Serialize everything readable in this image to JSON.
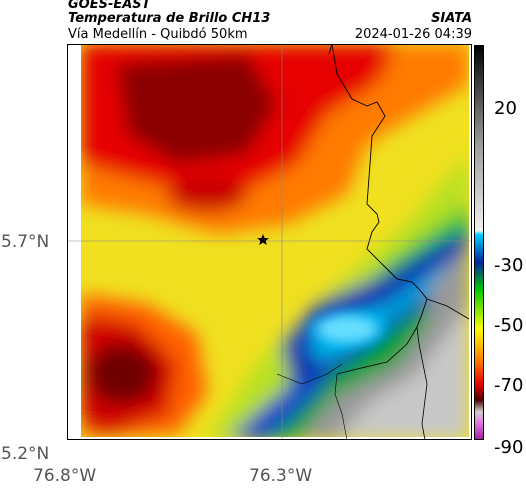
{
  "header": {
    "satellite": "GOES-EAST",
    "product": "Temperatura de Brillo CH13",
    "source": "SIATA",
    "route": "Vía Medellín - Quibdó 50km",
    "datetime": "2024-01-26 04:39"
  },
  "map": {
    "marker": "star-marker",
    "lat_labels": [
      "5.7°N",
      "5.2°N"
    ],
    "lon_labels": [
      "76.8°W",
      "76.3°W"
    ]
  },
  "colorbar": {
    "ticks": [
      "20",
      "-30",
      "-50",
      "-70",
      "-90"
    ],
    "palette": [
      "#000000",
      "#555555",
      "#9b9b9b",
      "#e8e8e8",
      "#00b6e6",
      "#0026a0",
      "#00c800",
      "#ffff00",
      "#ff8c00",
      "#e60000",
      "#6e0000",
      "#b43cb4"
    ]
  }
}
